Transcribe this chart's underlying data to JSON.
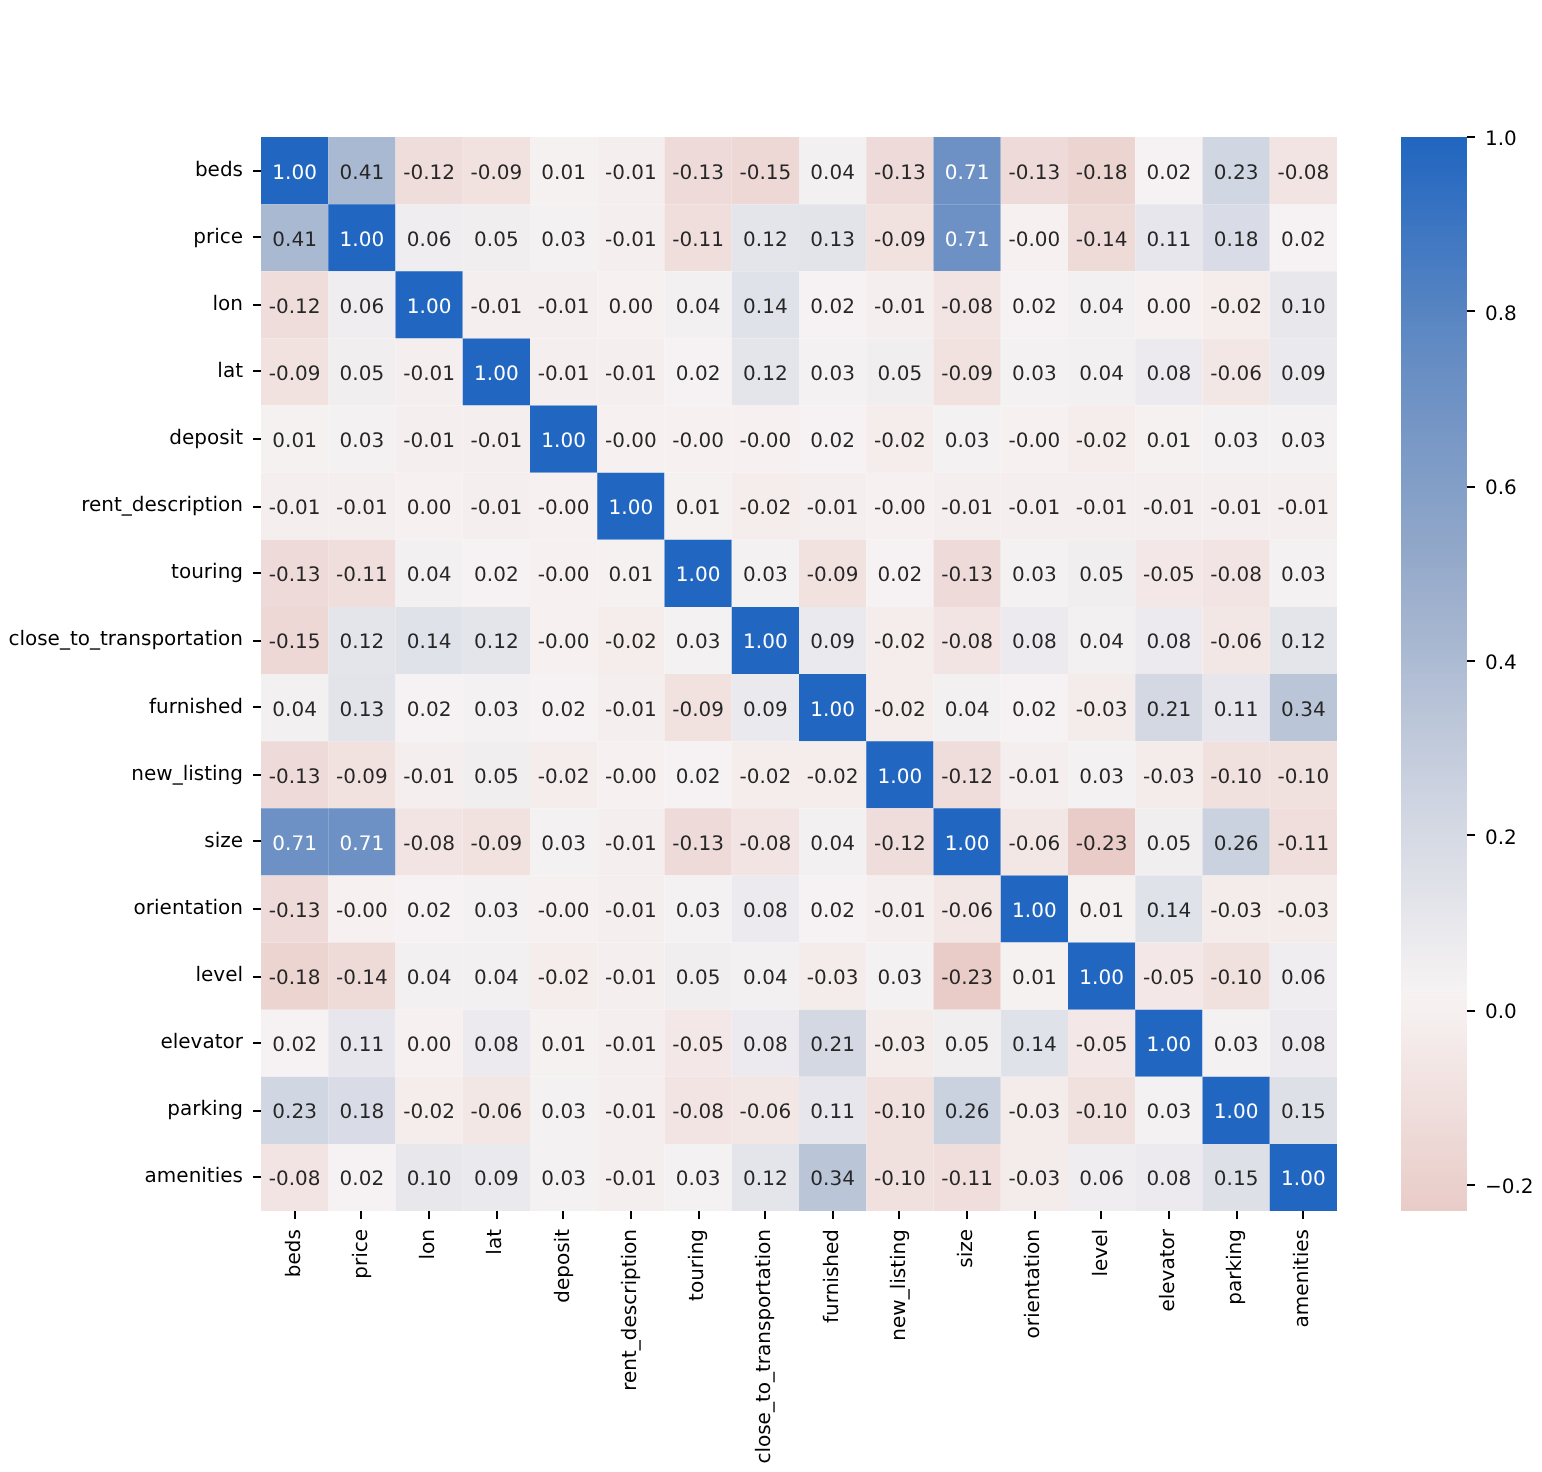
{
  "chart_data": {
    "type": "heatmap",
    "categories": [
      "beds",
      "price",
      "lon",
      "lat",
      "deposit",
      "rent_description",
      "touring",
      "close_to_transportation",
      "furnished",
      "new_listing",
      "size",
      "orientation",
      "level",
      "elevator",
      "parking",
      "amenities"
    ],
    "y_categories": [
      "beds",
      "price",
      "lon",
      "lat",
      "deposit",
      "rent_description",
      "touring",
      "close_to_transportation",
      "furnished",
      "new_listing",
      "size",
      "orientation",
      "level",
      "elevator",
      "parking",
      "amenities"
    ],
    "cells": [
      [
        1.0,
        0.41,
        -0.12,
        -0.09,
        0.01,
        -0.01,
        -0.13,
        -0.15,
        0.04,
        -0.13,
        0.71,
        -0.13,
        -0.18,
        0.02,
        0.23,
        -0.08
      ],
      [
        0.41,
        1.0,
        0.06,
        0.05,
        0.03,
        -0.01,
        -0.11,
        0.12,
        0.13,
        -0.09,
        0.71,
        0.0,
        -0.14,
        0.11,
        0.18,
        0.02
      ],
      [
        -0.12,
        0.06,
        1.0,
        -0.01,
        -0.01,
        0.0,
        0.04,
        0.14,
        0.02,
        -0.01,
        -0.08,
        0.02,
        0.04,
        0.0,
        -0.02,
        0.1
      ],
      [
        -0.09,
        0.05,
        -0.01,
        1.0,
        -0.01,
        -0.01,
        0.02,
        0.12,
        0.03,
        0.05,
        -0.09,
        0.03,
        0.04,
        0.08,
        -0.06,
        0.09
      ],
      [
        0.01,
        0.03,
        -0.01,
        -0.01,
        1.0,
        0.0,
        0.0,
        0.0,
        0.02,
        -0.02,
        0.03,
        0.0,
        -0.02,
        0.01,
        0.03,
        0.03
      ],
      [
        -0.01,
        -0.01,
        0.0,
        -0.01,
        0.0,
        1.0,
        0.01,
        -0.02,
        -0.01,
        0.0,
        -0.01,
        -0.01,
        -0.01,
        -0.01,
        -0.01,
        -0.01
      ],
      [
        -0.13,
        -0.11,
        0.04,
        0.02,
        0.0,
        0.01,
        1.0,
        0.03,
        -0.09,
        0.02,
        -0.13,
        0.03,
        0.05,
        -0.05,
        -0.08,
        0.03
      ],
      [
        -0.15,
        0.12,
        0.14,
        0.12,
        0.0,
        -0.02,
        0.03,
        1.0,
        0.09,
        -0.02,
        -0.08,
        0.08,
        0.04,
        0.08,
        -0.06,
        0.12
      ],
      [
        0.04,
        0.13,
        0.02,
        0.03,
        0.02,
        -0.01,
        -0.09,
        0.09,
        1.0,
        -0.02,
        0.04,
        0.02,
        -0.03,
        0.21,
        0.11,
        0.34
      ],
      [
        -0.13,
        -0.09,
        -0.01,
        0.05,
        -0.02,
        0.0,
        0.02,
        -0.02,
        -0.02,
        1.0,
        -0.12,
        -0.01,
        0.03,
        -0.03,
        -0.1,
        -0.1
      ],
      [
        0.71,
        0.71,
        -0.08,
        -0.09,
        0.03,
        -0.01,
        -0.13,
        -0.08,
        0.04,
        -0.12,
        1.0,
        -0.06,
        -0.23,
        0.05,
        0.26,
        -0.11
      ],
      [
        -0.13,
        0.0,
        0.02,
        0.03,
        0.0,
        -0.01,
        0.03,
        0.08,
        0.02,
        -0.01,
        -0.06,
        1.0,
        0.01,
        0.14,
        -0.03,
        -0.03
      ],
      [
        -0.18,
        -0.14,
        0.04,
        0.04,
        -0.02,
        -0.01,
        0.05,
        0.04,
        -0.03,
        0.03,
        -0.23,
        0.01,
        1.0,
        -0.05,
        -0.1,
        0.06
      ],
      [
        0.02,
        0.11,
        0.0,
        0.08,
        0.01,
        -0.01,
        -0.05,
        0.08,
        0.21,
        -0.03,
        0.05,
        0.14,
        -0.05,
        1.0,
        0.03,
        0.08
      ],
      [
        0.23,
        0.18,
        -0.02,
        -0.06,
        0.03,
        -0.01,
        -0.08,
        -0.06,
        0.11,
        -0.1,
        0.26,
        -0.03,
        -0.1,
        0.03,
        1.0,
        0.15
      ],
      [
        -0.08,
        0.02,
        0.1,
        0.09,
        0.03,
        -0.01,
        0.03,
        0.12,
        0.34,
        -0.1,
        -0.11,
        -0.03,
        0.06,
        0.08,
        0.15,
        1.0
      ]
    ],
    "cell_labels": [
      [
        "1.00",
        "0.41",
        "-0.12",
        "-0.09",
        "0.01",
        "-0.01",
        "-0.13",
        "-0.15",
        "0.04",
        "-0.13",
        "0.71",
        "-0.13",
        "-0.18",
        "0.02",
        "0.23",
        "-0.08"
      ],
      [
        "0.41",
        "1.00",
        "0.06",
        "0.05",
        "0.03",
        "-0.01",
        "-0.11",
        "0.12",
        "0.13",
        "-0.09",
        "0.71",
        "-0.00",
        "-0.14",
        "0.11",
        "0.18",
        "0.02"
      ],
      [
        "-0.12",
        "0.06",
        "1.00",
        "-0.01",
        "-0.01",
        "0.00",
        "0.04",
        "0.14",
        "0.02",
        "-0.01",
        "-0.08",
        "0.02",
        "0.04",
        "0.00",
        "-0.02",
        "0.10"
      ],
      [
        "-0.09",
        "0.05",
        "-0.01",
        "1.00",
        "-0.01",
        "-0.01",
        "0.02",
        "0.12",
        "0.03",
        "0.05",
        "-0.09",
        "0.03",
        "0.04",
        "0.08",
        "-0.06",
        "0.09"
      ],
      [
        "0.01",
        "0.03",
        "-0.01",
        "-0.01",
        "1.00",
        "-0.00",
        "-0.00",
        "-0.00",
        "0.02",
        "-0.02",
        "0.03",
        "-0.00",
        "-0.02",
        "0.01",
        "0.03",
        "0.03"
      ],
      [
        "-0.01",
        "-0.01",
        "0.00",
        "-0.01",
        "-0.00",
        "1.00",
        "0.01",
        "-0.02",
        "-0.01",
        "-0.00",
        "-0.01",
        "-0.01",
        "-0.01",
        "-0.01",
        "-0.01",
        "-0.01"
      ],
      [
        "-0.13",
        "-0.11",
        "0.04",
        "0.02",
        "-0.00",
        "0.01",
        "1.00",
        "0.03",
        "-0.09",
        "0.02",
        "-0.13",
        "0.03",
        "0.05",
        "-0.05",
        "-0.08",
        "0.03"
      ],
      [
        "-0.15",
        "0.12",
        "0.14",
        "0.12",
        "-0.00",
        "-0.02",
        "0.03",
        "1.00",
        "0.09",
        "-0.02",
        "-0.08",
        "0.08",
        "0.04",
        "0.08",
        "-0.06",
        "0.12"
      ],
      [
        "0.04",
        "0.13",
        "0.02",
        "0.03",
        "0.02",
        "-0.01",
        "-0.09",
        "0.09",
        "1.00",
        "-0.02",
        "0.04",
        "0.02",
        "-0.03",
        "0.21",
        "0.11",
        "0.34"
      ],
      [
        "-0.13",
        "-0.09",
        "-0.01",
        "0.05",
        "-0.02",
        "-0.00",
        "0.02",
        "-0.02",
        "-0.02",
        "1.00",
        "-0.12",
        "-0.01",
        "0.03",
        "-0.03",
        "-0.10",
        "-0.10"
      ],
      [
        "0.71",
        "0.71",
        "-0.08",
        "-0.09",
        "0.03",
        "-0.01",
        "-0.13",
        "-0.08",
        "0.04",
        "-0.12",
        "1.00",
        "-0.06",
        "-0.23",
        "0.05",
        "0.26",
        "-0.11"
      ],
      [
        "-0.13",
        "-0.00",
        "0.02",
        "0.03",
        "-0.00",
        "-0.01",
        "0.03",
        "0.08",
        "0.02",
        "-0.01",
        "-0.06",
        "1.00",
        "0.01",
        "0.14",
        "-0.03",
        "-0.03"
      ],
      [
        "-0.18",
        "-0.14",
        "0.04",
        "0.04",
        "-0.02",
        "-0.01",
        "0.05",
        "0.04",
        "-0.03",
        "0.03",
        "-0.23",
        "0.01",
        "1.00",
        "-0.05",
        "-0.10",
        "0.06"
      ],
      [
        "0.02",
        "0.11",
        "0.00",
        "0.08",
        "0.01",
        "-0.01",
        "-0.05",
        "0.08",
        "0.21",
        "-0.03",
        "0.05",
        "0.14",
        "-0.05",
        "1.00",
        "0.03",
        "0.08"
      ],
      [
        "0.23",
        "0.18",
        "-0.02",
        "-0.06",
        "0.03",
        "-0.01",
        "-0.08",
        "-0.06",
        "0.11",
        "-0.10",
        "0.26",
        "-0.03",
        "-0.10",
        "0.03",
        "1.00",
        "0.15"
      ],
      [
        "-0.08",
        "0.02",
        "0.10",
        "0.09",
        "0.03",
        "-0.01",
        "0.03",
        "0.12",
        "0.34",
        "-0.10",
        "-0.11",
        "-0.03",
        "0.06",
        "0.08",
        "0.15",
        "1.00"
      ]
    ],
    "clim": [
      -0.23,
      1.0
    ],
    "cticks": [
      {
        "value": -0.2,
        "label": "−0.2"
      },
      {
        "value": 0,
        "label": "0.0"
      },
      {
        "value": 0.2,
        "label": "0.2"
      },
      {
        "value": 0.4,
        "label": "0.4"
      },
      {
        "value": 0.6,
        "label": "0.6"
      },
      {
        "value": 0.8,
        "label": "0.8"
      },
      {
        "value": 1.0,
        "label": "1.0"
      }
    ],
    "colors": [
      "#e9ccc8",
      "#f7f3f3",
      "#cad1df",
      "#96aaca",
      "#648cc3",
      "#2166c0"
    ]
  }
}
